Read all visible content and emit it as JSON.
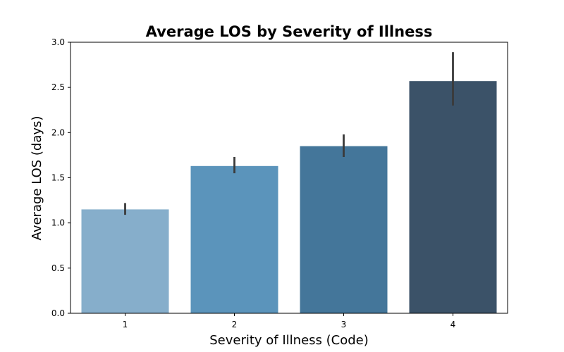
{
  "chart_data": {
    "type": "bar",
    "title": "Average LOS by Severity of Illness",
    "xlabel": "Severity of Illness (Code)",
    "ylabel": "Average LOS (days)",
    "categories": [
      "1",
      "2",
      "3",
      "4"
    ],
    "values": [
      1.15,
      1.63,
      1.85,
      2.57
    ],
    "error_bars": [
      {
        "low": 1.09,
        "high": 1.22
      },
      {
        "low": 1.55,
        "high": 1.73
      },
      {
        "low": 1.73,
        "high": 1.98
      },
      {
        "low": 2.3,
        "high": 2.89
      }
    ],
    "ylim": [
      0,
      3.0
    ],
    "yticks": [
      "0.0",
      "0.5",
      "1.0",
      "1.5",
      "2.0",
      "2.5",
      "3.0"
    ],
    "ytick_values": [
      0,
      0.5,
      1.0,
      1.5,
      2.0,
      2.5,
      3.0
    ],
    "colors": [
      "#86aecb",
      "#5b94bb",
      "#44769a",
      "#3b5268"
    ],
    "errorbar_color": "#3a3a3a",
    "grid": false,
    "legend": false
  }
}
